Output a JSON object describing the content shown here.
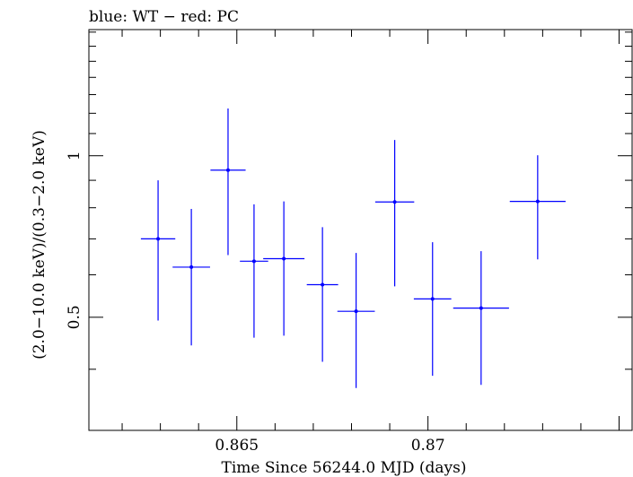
{
  "chart_data": {
    "type": "scatter",
    "title": "blue: WT − red: PC",
    "xlabel": "Time Since 56244.0 MJD (days)",
    "ylabel": "(2.0−10.0 keV)/(0.3−2.0 keV)",
    "xlim": [
      0.86113,
      0.87534
    ],
    "ylim": [
      0.3077,
      1.7185
    ],
    "y_scale": "log",
    "x_ticks": [
      {
        "value": 0.865,
        "label": "0.865"
      },
      {
        "value": 0.87,
        "label": "0.87"
      }
    ],
    "y_ticks": [
      {
        "value": 0.5,
        "label": "0.5"
      },
      {
        "value": 1.0,
        "label": "1"
      }
    ],
    "series": [
      {
        "name": "WT",
        "color": "#0000ff",
        "points": [
          {
            "x": 0.86294,
            "xerr": 0.00045,
            "y": 0.7,
            "ylo": 0.493,
            "yhi": 0.9
          },
          {
            "x": 0.86381,
            "xerr": 0.00049,
            "y": 0.62,
            "ylo": 0.443,
            "yhi": 0.796
          },
          {
            "x": 0.86477,
            "xerr": 0.00046,
            "y": 0.94,
            "ylo": 0.653,
            "yhi": 1.225
          },
          {
            "x": 0.86545,
            "xerr": 0.00037,
            "y": 0.636,
            "ylo": 0.458,
            "yhi": 0.812
          },
          {
            "x": 0.86623,
            "xerr": 0.00054,
            "y": 0.643,
            "ylo": 0.462,
            "yhi": 0.822
          },
          {
            "x": 0.86724,
            "xerr": 0.00041,
            "y": 0.575,
            "ylo": 0.413,
            "yhi": 0.736
          },
          {
            "x": 0.86812,
            "xerr": 0.00049,
            "y": 0.513,
            "ylo": 0.369,
            "yhi": 0.659
          },
          {
            "x": 0.86913,
            "xerr": 0.00051,
            "y": 0.82,
            "ylo": 0.571,
            "yhi": 1.07
          },
          {
            "x": 0.87012,
            "xerr": 0.00049,
            "y": 0.541,
            "ylo": 0.389,
            "yhi": 0.69
          },
          {
            "x": 0.87139,
            "xerr": 0.00073,
            "y": 0.52,
            "ylo": 0.374,
            "yhi": 0.664
          },
          {
            "x": 0.87287,
            "xerr": 0.00073,
            "y": 0.822,
            "ylo": 0.641,
            "yhi": 1.002
          }
        ]
      }
    ]
  }
}
